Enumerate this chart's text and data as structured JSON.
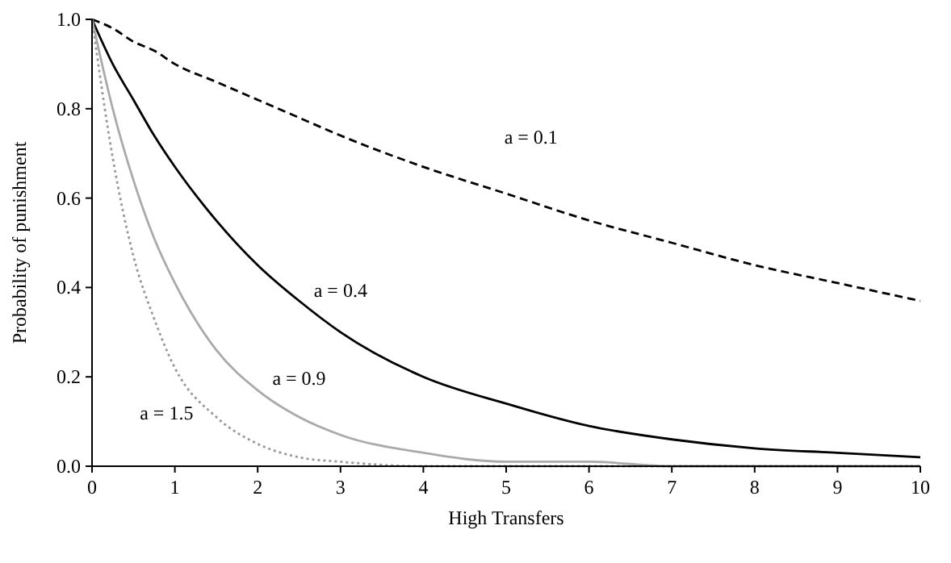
{
  "chart_data": {
    "type": "line",
    "xlabel": "High Transfers",
    "ylabel": "Probability of punishment",
    "x": [
      0,
      0.25,
      0.5,
      0.75,
      1,
      1.5,
      2,
      2.5,
      3,
      4,
      5,
      6,
      7,
      8,
      9,
      10
    ],
    "series": [
      {
        "name": "a = 0.1",
        "color": "#000000",
        "line_style": "dashed",
        "values": [
          1,
          0.98,
          0.95,
          0.93,
          0.9,
          0.86,
          0.82,
          0.78,
          0.74,
          0.67,
          0.61,
          0.55,
          0.5,
          0.45,
          0.41,
          0.37
        ]
      },
      {
        "name": "a = 0.4",
        "color": "#000000",
        "line_style": "solid",
        "values": [
          1,
          0.9,
          0.82,
          0.74,
          0.67,
          0.55,
          0.45,
          0.37,
          0.3,
          0.2,
          0.14,
          0.09,
          0.06,
          0.04,
          0.03,
          0.02
        ]
      },
      {
        "name": "a = 0.9",
        "color": "#aaaaaa",
        "line_style": "solid",
        "values": [
          1,
          0.8,
          0.64,
          0.51,
          0.41,
          0.26,
          0.17,
          0.11,
          0.07,
          0.03,
          0.01,
          0.01,
          0,
          0,
          0,
          0
        ]
      },
      {
        "name": "a = 1.5",
        "color": "#999999",
        "line_style": "dotted",
        "values": [
          1,
          0.69,
          0.47,
          0.33,
          0.22,
          0.11,
          0.05,
          0.02,
          0.01,
          0,
          0,
          0,
          0,
          0,
          0,
          0
        ]
      }
    ],
    "xlim": [
      0,
      10
    ],
    "xticks": [
      0,
      1,
      2,
      3,
      4,
      5,
      6,
      7,
      8,
      9,
      10
    ],
    "ylim": [
      0,
      1
    ],
    "yticks": [
      {
        "value": 0,
        "label": "0.0"
      },
      0.2,
      0.4,
      0.6,
      0.8,
      {
        "value": 1,
        "label": "1.0"
      }
    ],
    "grid": false,
    "marker": "none"
  }
}
